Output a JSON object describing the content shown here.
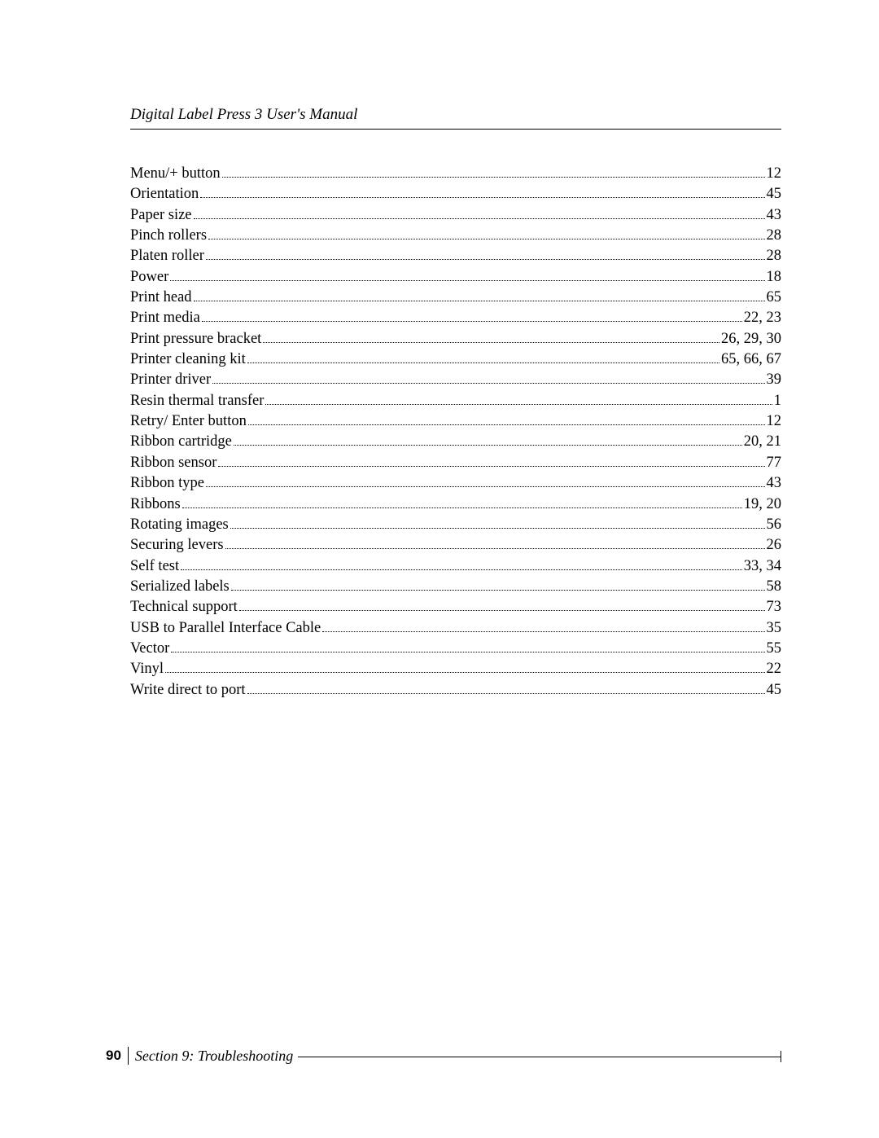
{
  "header": {
    "title": "Digital Label Press 3 User's Manual"
  },
  "index": {
    "entries": [
      {
        "term": "Menu/+ button",
        "pages": "12"
      },
      {
        "term": "Orientation",
        "pages": "45"
      },
      {
        "term": "Paper size",
        "pages": "43"
      },
      {
        "term": "Pinch rollers",
        "pages": "28"
      },
      {
        "term": "Platen roller",
        "pages": "28"
      },
      {
        "term": "Power",
        "pages": "18"
      },
      {
        "term": "Print head",
        "pages": "65"
      },
      {
        "term": "Print media",
        "pages": "22, 23"
      },
      {
        "term": "Print pressure bracket",
        "pages": "26, 29, 30"
      },
      {
        "term": "Printer cleaning kit",
        "pages": "65, 66, 67"
      },
      {
        "term": "Printer driver",
        "pages": "39"
      },
      {
        "term": "Resin thermal transfer",
        "pages": "1"
      },
      {
        "term": "Retry/ Enter button",
        "pages": "12"
      },
      {
        "term": "Ribbon cartridge",
        "pages": "20, 21"
      },
      {
        "term": "Ribbon sensor",
        "pages": "77"
      },
      {
        "term": "Ribbon type",
        "pages": "43"
      },
      {
        "term": "Ribbons",
        "pages": "19, 20"
      },
      {
        "term": "Rotating images",
        "pages": "56"
      },
      {
        "term": "Securing levers",
        "pages": "26"
      },
      {
        "term": "Self test",
        "pages": "33, 34"
      },
      {
        "term": "Serialized labels",
        "pages": "58"
      },
      {
        "term": "Technical support",
        "pages": "73"
      },
      {
        "term": "USB to Parallel Interface Cable",
        "pages": "35"
      },
      {
        "term": "Vector",
        "pages": "55"
      },
      {
        "term": "Vinyl",
        "pages": "22"
      },
      {
        "term": "Write direct to port",
        "pages": "45"
      }
    ]
  },
  "footer": {
    "page_number": "90",
    "section": "Section 9:  Troubleshooting"
  }
}
